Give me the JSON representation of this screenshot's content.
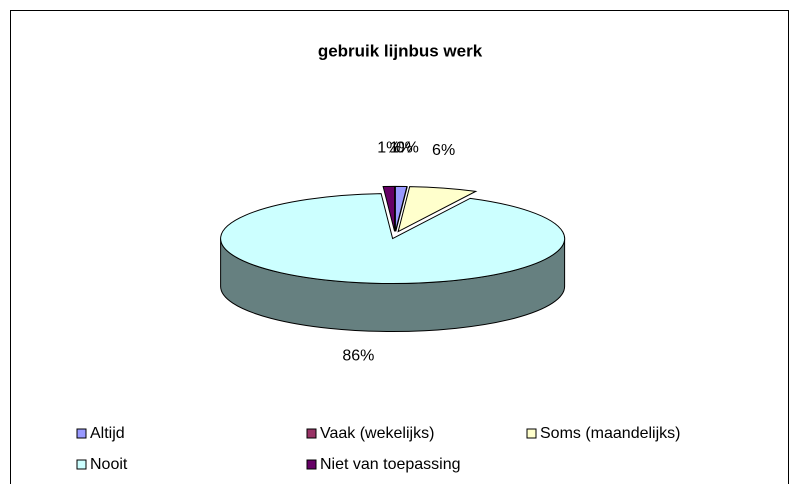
{
  "chart_data": {
    "type": "pie",
    "title": "gebruik lijnbus werk",
    "categories": [
      "Altijd",
      "Vaak (wekelijks)",
      "Soms (maandelijks)",
      "Nooit",
      "Niet van toepassing"
    ],
    "values": [
      1,
      0,
      6,
      86,
      1
    ],
    "colors": [
      "#9999ff",
      "#993366",
      "#ffffcc",
      "#ccffff",
      "#660066"
    ]
  }
}
